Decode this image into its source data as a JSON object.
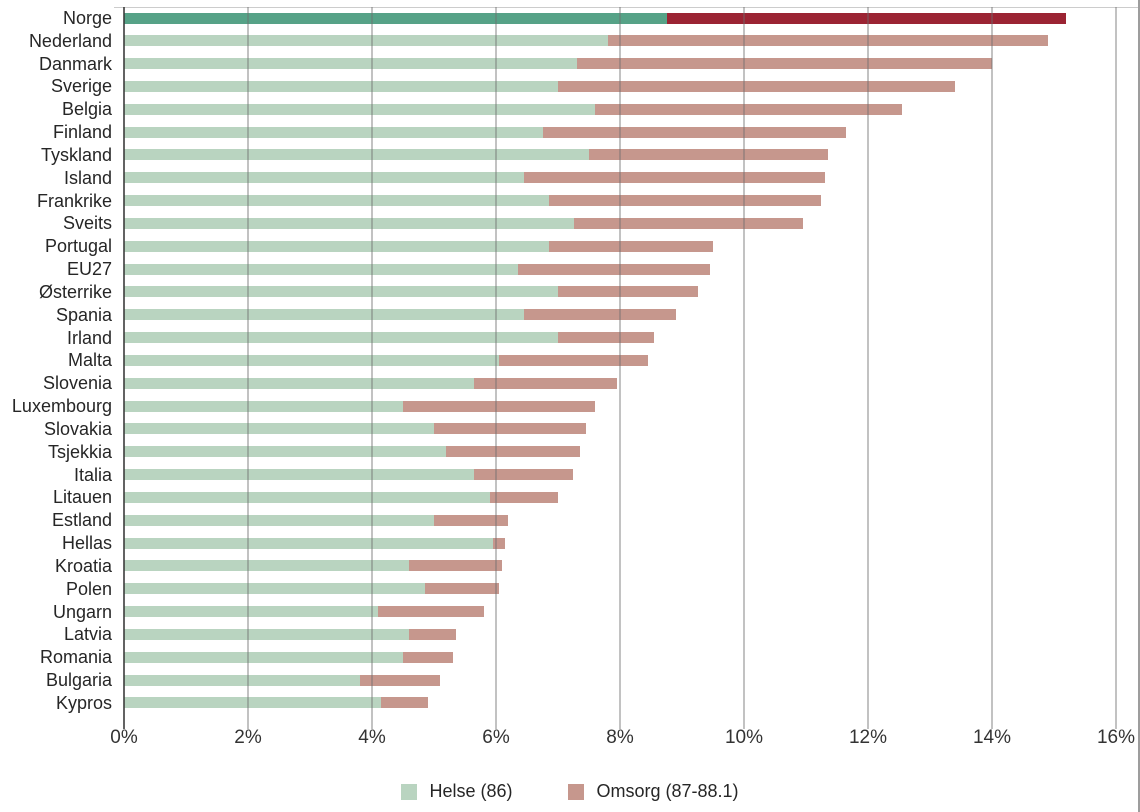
{
  "chart_data": {
    "type": "bar",
    "orientation": "horizontal",
    "stacked": true,
    "title": "",
    "xlabel": "",
    "ylabel": "",
    "x_unit": "%",
    "xlim": [
      0,
      16
    ],
    "x_ticks": [
      "0%",
      "2%",
      "4%",
      "6%",
      "8%",
      "10%",
      "12%",
      "14%",
      "16%"
    ],
    "x_tick_values": [
      0,
      2,
      4,
      6,
      8,
      10,
      12,
      14,
      16
    ],
    "grid": true,
    "legend_position": "bottom-center",
    "highlight_category": "Norge",
    "categories": [
      "Norge",
      "Nederland",
      "Danmark",
      "Sverige",
      "Belgia",
      "Finland",
      "Tyskland",
      "Island",
      "Frankrike",
      "Sveits",
      "Portugal",
      "EU27",
      "Østerrike",
      "Spania",
      "Irland",
      "Malta",
      "Slovenia",
      "Luxembourg",
      "Slovakia",
      "Tsjekkia",
      "Italia",
      "Litauen",
      "Estland",
      "Hellas",
      "Kroatia",
      "Polen",
      "Ungarn",
      "Latvia",
      "Romania",
      "Bulgaria",
      "Kypros"
    ],
    "series": [
      {
        "name": "Helse (86)",
        "values": [
          8.75,
          7.8,
          7.3,
          7.0,
          7.6,
          6.75,
          7.5,
          6.45,
          6.85,
          7.25,
          6.85,
          6.35,
          7.0,
          6.45,
          7.0,
          6.05,
          5.65,
          4.5,
          5.0,
          5.2,
          5.65,
          5.9,
          5.0,
          5.95,
          4.6,
          4.85,
          4.1,
          4.6,
          4.5,
          3.8,
          4.15
        ]
      },
      {
        "name": "Omsorg (87-88.1)",
        "values": [
          6.45,
          7.1,
          6.7,
          6.4,
          4.95,
          4.9,
          3.85,
          4.85,
          4.4,
          3.7,
          2.65,
          3.1,
          2.25,
          2.45,
          1.55,
          2.4,
          2.3,
          3.1,
          2.45,
          2.15,
          1.6,
          1.1,
          1.2,
          0.2,
          1.5,
          1.2,
          1.7,
          0.75,
          0.8,
          1.3,
          0.75
        ]
      }
    ],
    "totals": [
      15.2,
      14.9,
      14.0,
      13.4,
      12.55,
      11.65,
      11.35,
      11.3,
      11.25,
      10.95,
      9.5,
      9.45,
      9.25,
      8.9,
      8.55,
      8.45,
      7.95,
      7.6,
      7.45,
      7.35,
      7.25,
      7.0,
      6.2,
      6.15,
      6.1,
      6.05,
      5.8,
      5.35,
      5.3,
      5.1,
      4.9
    ]
  },
  "legend": {
    "items": [
      {
        "label": "Helse (86)",
        "color": "#b9d4c0"
      },
      {
        "label": "Omsorg (87-88.1)",
        "color": "#c6978d"
      }
    ]
  },
  "colors": {
    "helse": "#b9d4c0",
    "omsorg": "#c6978d",
    "highlight_helse": "#56a287",
    "highlight_omsorg": "#9b2433",
    "gridline": "#ababab",
    "axis_line": "#4a4a4a",
    "text": "#262626"
  }
}
